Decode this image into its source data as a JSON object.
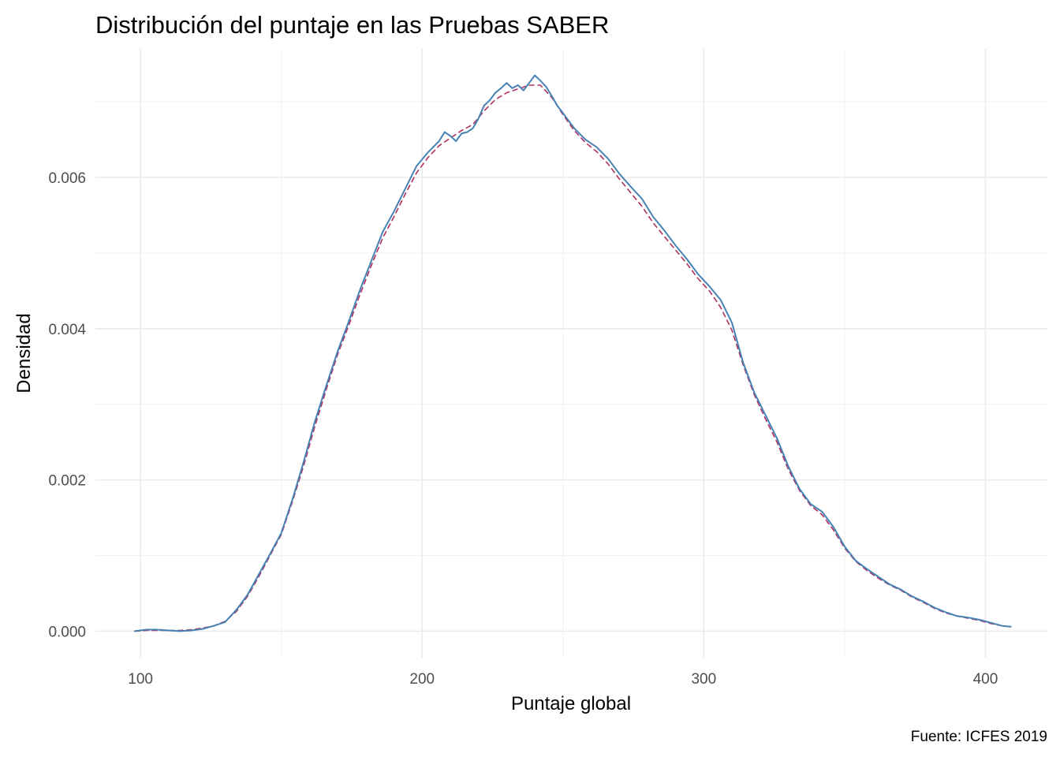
{
  "chart_data": {
    "type": "line",
    "title": "Distribución del puntaje en las Pruebas SABER",
    "xlabel": "Puntaje global",
    "ylabel": "Densidad",
    "caption": "Fuente: ICFES 2019",
    "xlim": [
      84,
      422
    ],
    "ylim": [
      -0.00035,
      0.0077
    ],
    "x_ticks": [
      100,
      200,
      300,
      400
    ],
    "x_tick_labels": [
      "100",
      "200",
      "300",
      "400"
    ],
    "x_minor_ticks": [
      150,
      250,
      350
    ],
    "y_ticks": [
      0.0,
      0.002,
      0.004,
      0.006
    ],
    "y_tick_labels": [
      "0.000",
      "0.002",
      "0.004",
      "0.006"
    ],
    "y_minor_ticks": [
      0.001,
      0.003,
      0.005,
      0.007
    ],
    "grid": true,
    "legend": "none",
    "series": [
      {
        "style": "solid",
        "color": "#4682b4",
        "x": [
          98,
          102,
          106,
          110,
          114,
          118,
          122,
          126,
          130,
          134,
          138,
          142,
          146,
          150,
          154,
          158,
          162,
          166,
          170,
          174,
          178,
          182,
          186,
          190,
          194,
          198,
          202,
          206,
          208,
          210,
          212,
          214,
          216,
          218,
          220,
          222,
          224,
          226,
          228,
          230,
          232,
          234,
          236,
          238,
          240,
          242,
          244,
          246,
          248,
          250,
          254,
          258,
          262,
          266,
          270,
          274,
          278,
          282,
          286,
          290,
          294,
          298,
          302,
          306,
          310,
          314,
          318,
          322,
          326,
          330,
          334,
          338,
          342,
          346,
          350,
          354,
          358,
          362,
          366,
          370,
          374,
          378,
          382,
          386,
          390,
          394,
          398,
          402,
          406,
          409
        ],
        "y": [
          0.0,
          2e-05,
          2e-05,
          1e-05,
          0.0,
          1e-05,
          3e-05,
          7e-05,
          0.00012,
          0.00028,
          0.00048,
          0.00075,
          0.00102,
          0.0013,
          0.00175,
          0.00225,
          0.00278,
          0.00325,
          0.0037,
          0.0041,
          0.00452,
          0.0049,
          0.00528,
          0.00555,
          0.00585,
          0.00615,
          0.00633,
          0.00648,
          0.0066,
          0.00655,
          0.00648,
          0.00658,
          0.0066,
          0.00665,
          0.00678,
          0.00695,
          0.00702,
          0.00712,
          0.00718,
          0.00725,
          0.00718,
          0.00722,
          0.00715,
          0.00725,
          0.00735,
          0.00728,
          0.0072,
          0.00708,
          0.00695,
          0.00685,
          0.00665,
          0.0065,
          0.0064,
          0.00625,
          0.00605,
          0.00588,
          0.00572,
          0.00548,
          0.0053,
          0.0051,
          0.00492,
          0.00472,
          0.00456,
          0.00438,
          0.00408,
          0.00355,
          0.00315,
          0.00285,
          0.00255,
          0.00218,
          0.00188,
          0.00168,
          0.00158,
          0.00138,
          0.00112,
          0.00093,
          0.00082,
          0.00072,
          0.00062,
          0.00055,
          0.00046,
          0.00039,
          0.00031,
          0.00025,
          0.0002,
          0.00018,
          0.00015,
          0.00011,
          7e-05,
          6e-05
        ]
      },
      {
        "style": "dashed",
        "color": "#b03060",
        "x": [
          98,
          102,
          106,
          110,
          114,
          118,
          122,
          126,
          130,
          134,
          138,
          142,
          146,
          150,
          154,
          158,
          162,
          166,
          170,
          174,
          178,
          182,
          186,
          190,
          194,
          198,
          202,
          206,
          210,
          214,
          218,
          222,
          226,
          230,
          234,
          238,
          242,
          246,
          250,
          254,
          258,
          262,
          266,
          270,
          274,
          278,
          282,
          286,
          290,
          294,
          298,
          302,
          306,
          310,
          314,
          318,
          322,
          326,
          330,
          334,
          338,
          342,
          346,
          350,
          354,
          358,
          362,
          366,
          370,
          374,
          378,
          382,
          386,
          390,
          394,
          398,
          402,
          406,
          409
        ],
        "y": [
          0.0,
          1e-05,
          1e-05,
          1e-05,
          1e-05,
          2e-05,
          4e-05,
          7e-05,
          0.00013,
          0.00026,
          0.00046,
          0.00072,
          0.001,
          0.00128,
          0.00172,
          0.0022,
          0.00272,
          0.0032,
          0.00366,
          0.00405,
          0.00446,
          0.00484,
          0.0052,
          0.00548,
          0.00578,
          0.00606,
          0.00626,
          0.00642,
          0.00652,
          0.00662,
          0.0067,
          0.00688,
          0.00703,
          0.00712,
          0.00717,
          0.00722,
          0.00722,
          0.00706,
          0.00683,
          0.00662,
          0.00646,
          0.00634,
          0.00618,
          0.00598,
          0.0058,
          0.00562,
          0.0054,
          0.00522,
          0.00504,
          0.00486,
          0.00466,
          0.0045,
          0.00428,
          0.00398,
          0.00352,
          0.00312,
          0.0028,
          0.0025,
          0.00214,
          0.00186,
          0.00166,
          0.00154,
          0.00134,
          0.0011,
          0.00092,
          0.0008,
          0.0007,
          0.00061,
          0.00054,
          0.00045,
          0.00038,
          0.0003,
          0.00024,
          0.0002,
          0.00017,
          0.00014,
          0.0001,
          7e-05,
          6e-05
        ]
      }
    ]
  }
}
